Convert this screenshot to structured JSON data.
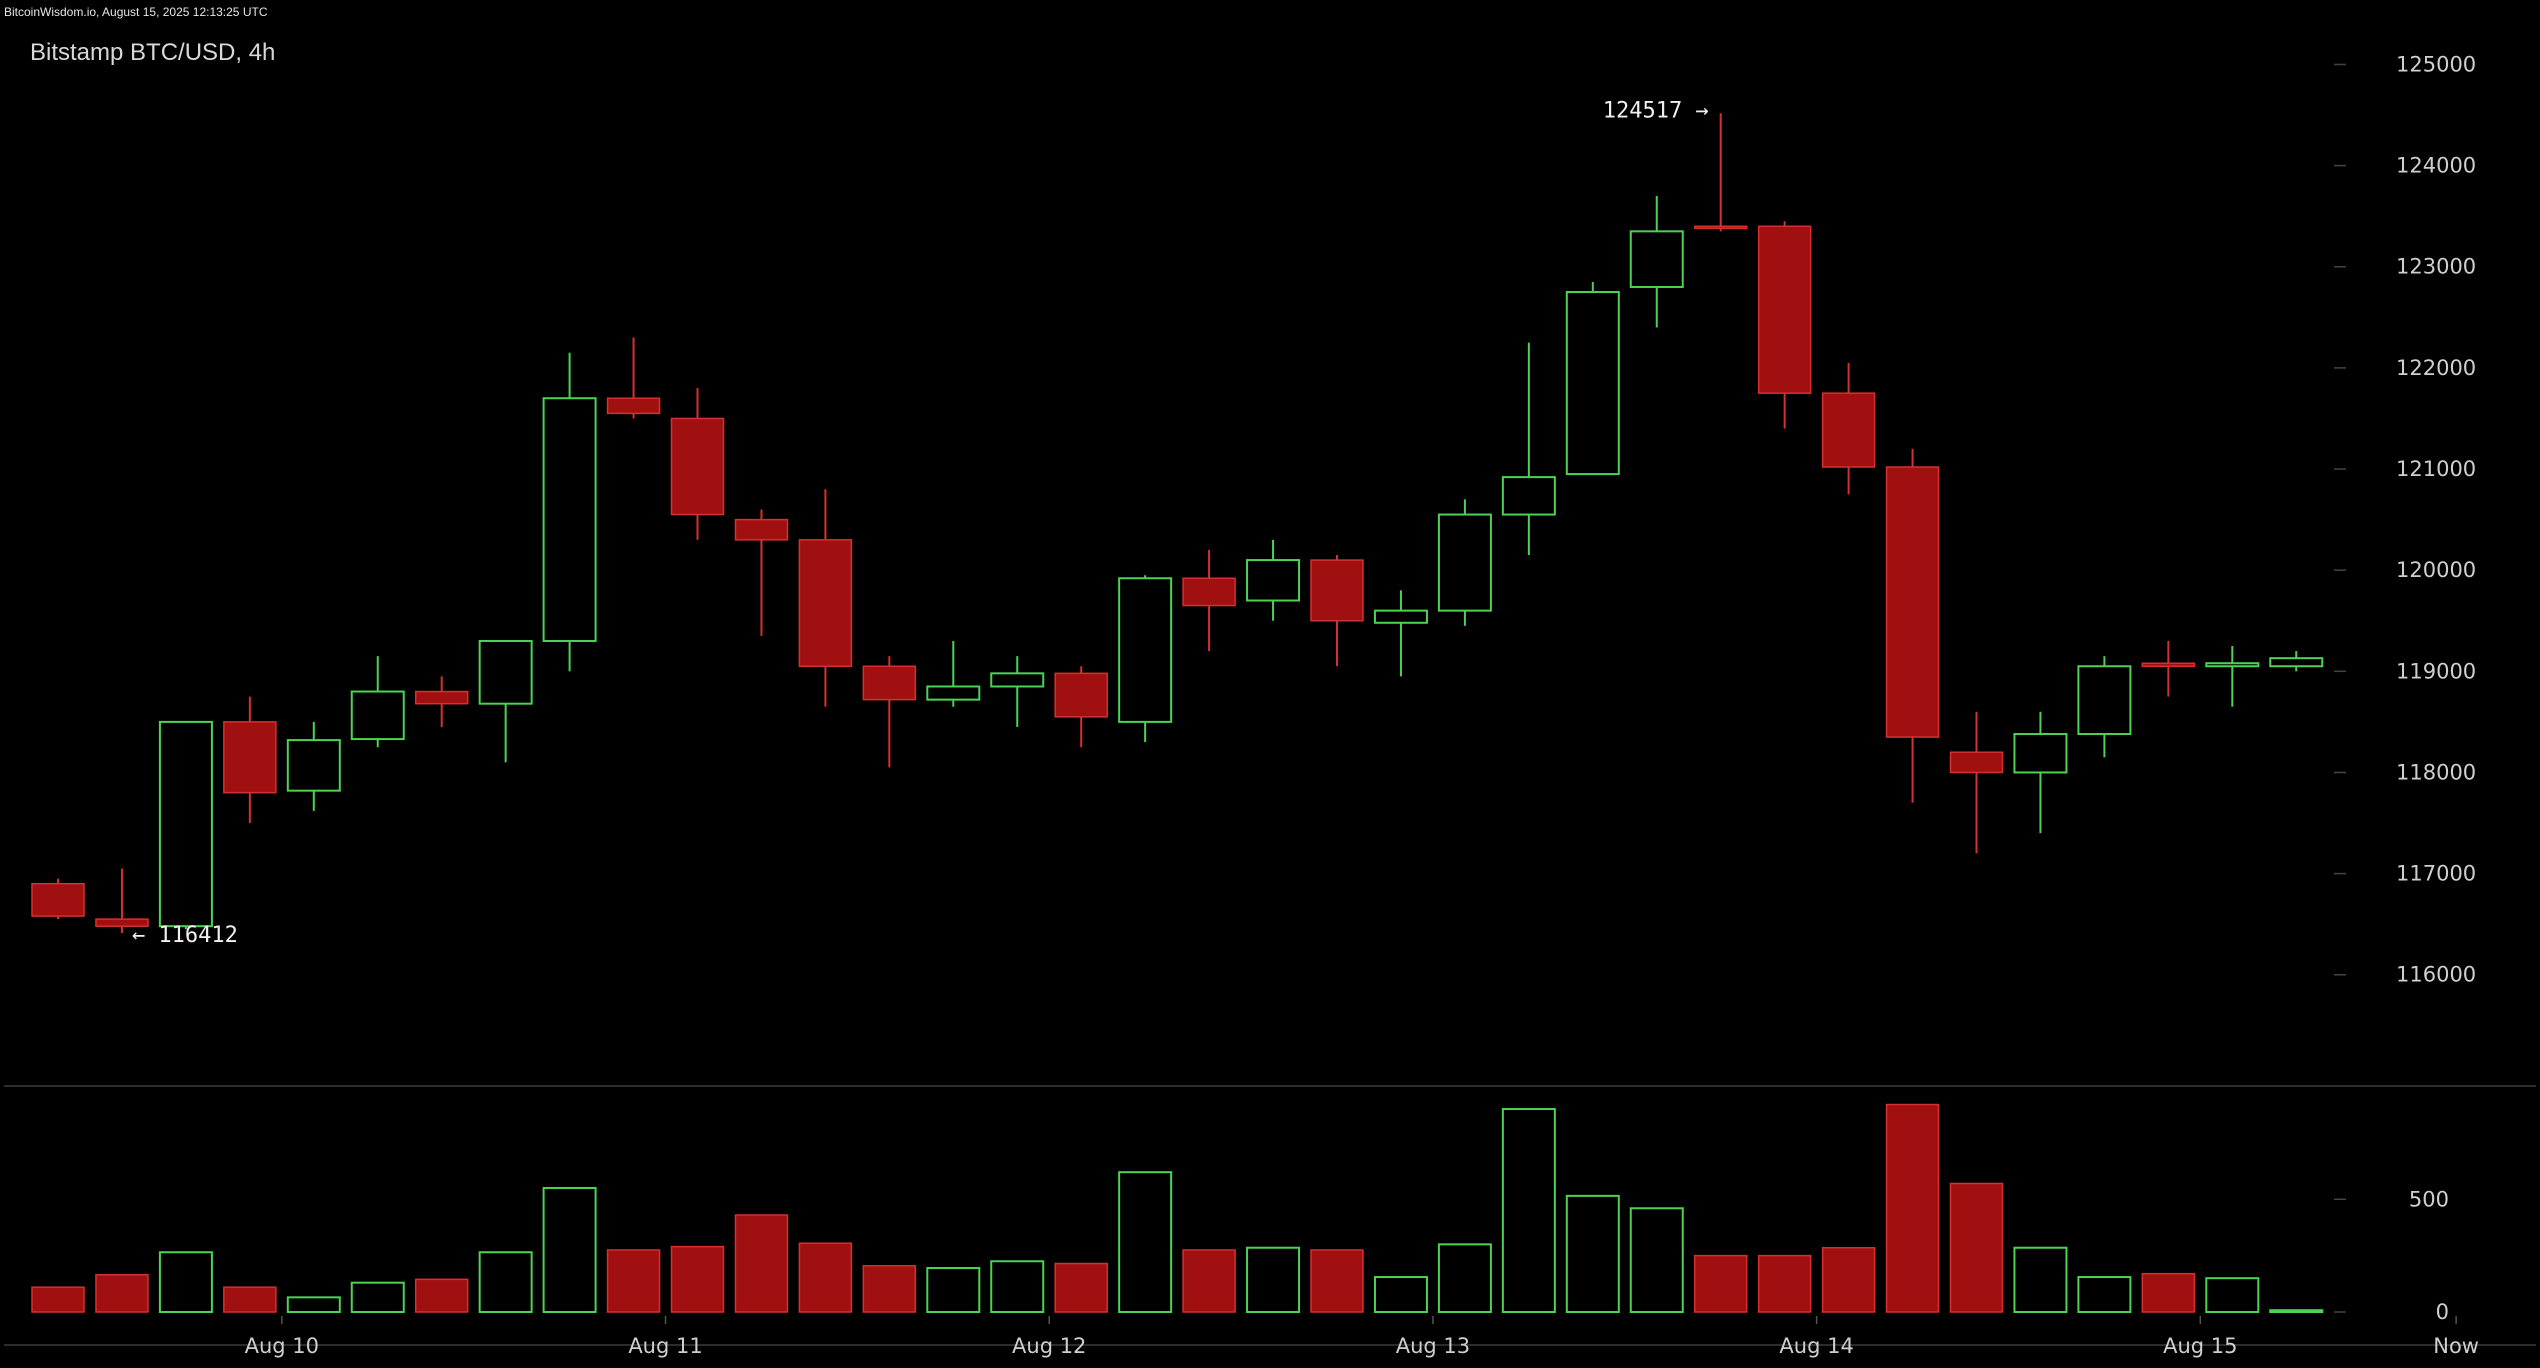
{
  "header": {
    "source": "BitcoinWisdom.io, August 15, 2025 12:13:25 UTC"
  },
  "chart_data": {
    "type": "candlestick",
    "title": "Bitstamp BTC/USD, 4h",
    "price_axis": {
      "min": 114900,
      "max": 125400,
      "ticks": [
        116000,
        117000,
        118000,
        119000,
        120000,
        121000,
        122000,
        123000,
        124000,
        125000
      ]
    },
    "volume_axis": {
      "min": 0,
      "max": 1000,
      "ticks": [
        0,
        500
      ]
    },
    "x_labels": [
      {
        "label": "Aug 10",
        "index": 3.5
      },
      {
        "label": "Aug 11",
        "index": 9.5
      },
      {
        "label": "Aug 12",
        "index": 15.5
      },
      {
        "label": "Aug 13",
        "index": 21.5
      },
      {
        "label": "Aug 14",
        "index": 27.5
      },
      {
        "label": "Aug 15",
        "index": 33.5
      },
      {
        "label": "Now",
        "index": 37.5
      }
    ],
    "candles": [
      {
        "o": 116900,
        "h": 116950,
        "l": 116550,
        "c": 116580,
        "v": 110
      },
      {
        "o": 116550,
        "h": 117050,
        "l": 116412,
        "c": 116480,
        "v": 165
      },
      {
        "o": 116480,
        "h": 118500,
        "l": 116450,
        "c": 118500,
        "v": 265
      },
      {
        "o": 118500,
        "h": 118750,
        "l": 117500,
        "c": 117800,
        "v": 110
      },
      {
        "o": 117820,
        "h": 118500,
        "l": 117620,
        "c": 118320,
        "v": 65
      },
      {
        "o": 118330,
        "h": 119150,
        "l": 118250,
        "c": 118800,
        "v": 130
      },
      {
        "o": 118800,
        "h": 118950,
        "l": 118450,
        "c": 118680,
        "v": 145
      },
      {
        "o": 118680,
        "h": 119300,
        "l": 118100,
        "c": 119300,
        "v": 265
      },
      {
        "o": 119300,
        "h": 122150,
        "l": 119000,
        "c": 121700,
        "v": 550
      },
      {
        "o": 121700,
        "h": 122300,
        "l": 121500,
        "c": 121550,
        "v": 275
      },
      {
        "o": 121500,
        "h": 121800,
        "l": 120300,
        "c": 120550,
        "v": 290
      },
      {
        "o": 120500,
        "h": 120600,
        "l": 119350,
        "c": 120300,
        "v": 430
      },
      {
        "o": 120300,
        "h": 120800,
        "l": 118650,
        "c": 119050,
        "v": 305
      },
      {
        "o": 119050,
        "h": 119150,
        "l": 118050,
        "c": 118720,
        "v": 205
      },
      {
        "o": 118720,
        "h": 119300,
        "l": 118650,
        "c": 118850,
        "v": 195
      },
      {
        "o": 118850,
        "h": 119150,
        "l": 118450,
        "c": 118980,
        "v": 225
      },
      {
        "o": 118980,
        "h": 119050,
        "l": 118250,
        "c": 118550,
        "v": 215
      },
      {
        "o": 118500,
        "h": 119950,
        "l": 118300,
        "c": 119920,
        "v": 620
      },
      {
        "o": 119920,
        "h": 120200,
        "l": 119200,
        "c": 119650,
        "v": 275
      },
      {
        "o": 119700,
        "h": 120300,
        "l": 119500,
        "c": 120100,
        "v": 285
      },
      {
        "o": 120100,
        "h": 120150,
        "l": 119050,
        "c": 119500,
        "v": 275
      },
      {
        "o": 119480,
        "h": 119800,
        "l": 118950,
        "c": 119600,
        "v": 155
      },
      {
        "o": 119600,
        "h": 120700,
        "l": 119450,
        "c": 120550,
        "v": 300
      },
      {
        "o": 120550,
        "h": 122250,
        "l": 120150,
        "c": 120920,
        "v": 900
      },
      {
        "o": 120950,
        "h": 122850,
        "l": 120950,
        "c": 122750,
        "v": 515
      },
      {
        "o": 122800,
        "h": 123700,
        "l": 122400,
        "c": 123350,
        "v": 460
      },
      {
        "o": 123400,
        "h": 124517,
        "l": 123350,
        "c": 123380,
        "v": 250
      },
      {
        "o": 123400,
        "h": 123450,
        "l": 121400,
        "c": 121750,
        "v": 250
      },
      {
        "o": 121750,
        "h": 122050,
        "l": 120750,
        "c": 121020,
        "v": 285
      },
      {
        "o": 121020,
        "h": 121200,
        "l": 117700,
        "c": 118350,
        "v": 920
      },
      {
        "o": 118200,
        "h": 118600,
        "l": 117200,
        "c": 118000,
        "v": 570
      },
      {
        "o": 118000,
        "h": 118600,
        "l": 117400,
        "c": 118380,
        "v": 285
      },
      {
        "o": 118380,
        "h": 119150,
        "l": 118150,
        "c": 119050,
        "v": 155
      },
      {
        "o": 119080,
        "h": 119300,
        "l": 118750,
        "c": 119050,
        "v": 170
      },
      {
        "o": 119050,
        "h": 119250,
        "l": 118650,
        "c": 119080,
        "v": 150
      },
      {
        "o": 119050,
        "h": 119200,
        "l": 119000,
        "c": 119130,
        "v": 8
      }
    ],
    "annotations": {
      "high": {
        "value": 124517,
        "label": "124517 →",
        "index": 26
      },
      "low": {
        "value": 116412,
        "label": "← 116412",
        "index": 1
      }
    },
    "colors": {
      "up": "#4cd353",
      "down": "#a01010",
      "down_stroke": "#d63030",
      "background": "#000000",
      "separator": "#3a3a3a"
    }
  }
}
